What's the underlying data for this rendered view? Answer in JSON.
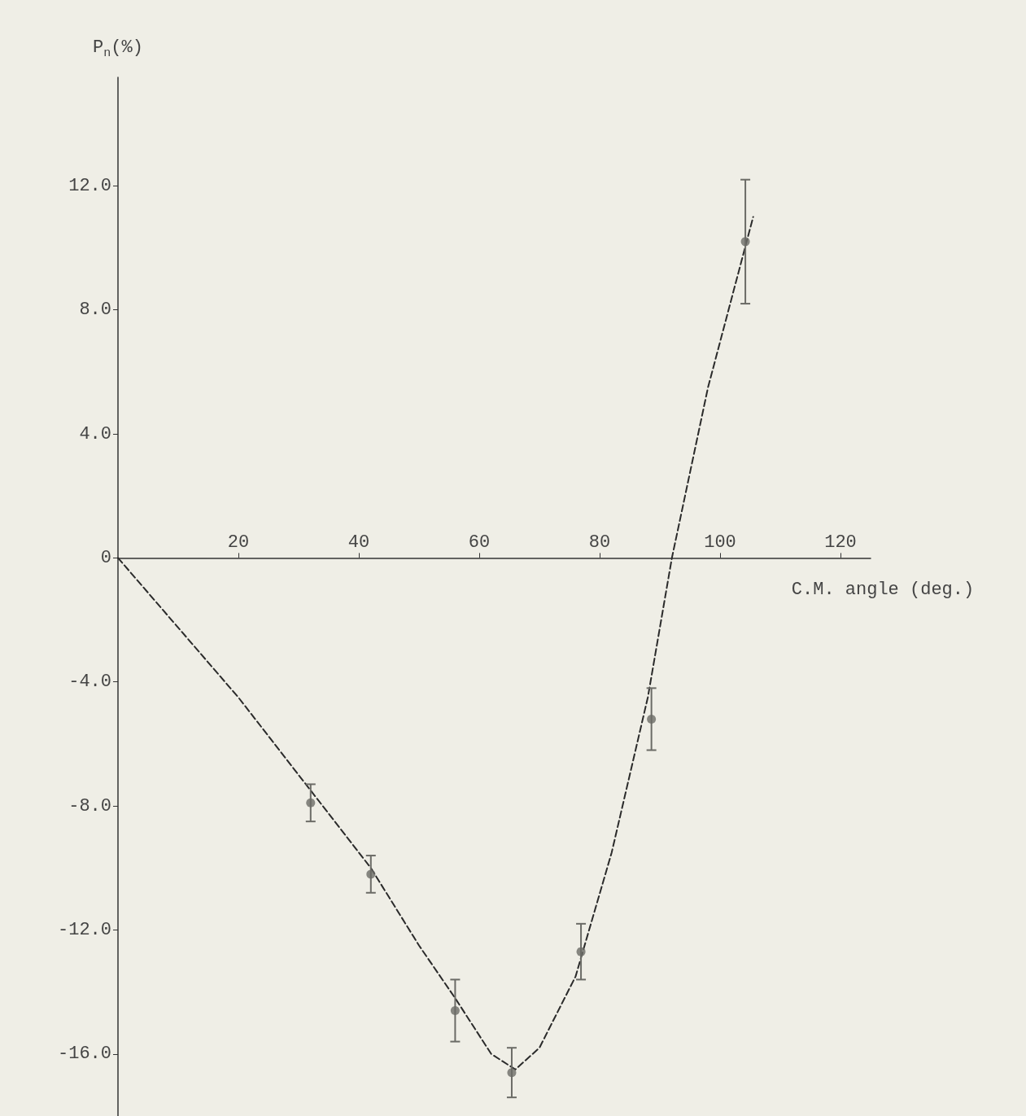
{
  "chart_data": {
    "type": "scatter",
    "xlabel": "C.M. angle (deg.)",
    "ylabel": "P$_{n}$(%)",
    "xlim": [
      0,
      125
    ],
    "xticks": [
      20,
      40,
      60,
      80,
      100,
      120
    ],
    "ylim": [
      -18,
      15.5
    ],
    "yticks": [
      {
        "value": -16,
        "label": "-16.0"
      },
      {
        "value": -12,
        "label": "-12.0"
      },
      {
        "value": -8,
        "label": "-8.0"
      },
      {
        "value": -4,
        "label": "-4.0"
      },
      0,
      {
        "value": 4,
        "label": "4.0"
      },
      {
        "value": 8,
        "label": "8.0"
      },
      {
        "value": 12,
        "label": "12.0"
      }
    ],
    "series": [
      {
        "color": "#6b6b66",
        "marker": "circle",
        "x": [
          32,
          42,
          56,
          65.4,
          76.9,
          88.6,
          104.2
        ],
        "values": [
          -7.9,
          -10.2,
          -14.6,
          -16.6,
          -12.7,
          -5.2,
          10.2
        ],
        "errors": [
          0.6,
          0.6,
          1.0,
          0.8,
          0.9,
          1.0,
          2.0
        ]
      },
      {
        "type": "line",
        "color": "#2a2a2a",
        "marker": "none",
        "line_style": "dashed",
        "x": [
          0,
          20,
          32,
          42,
          50,
          56,
          62,
          66,
          70,
          76,
          82,
          88,
          92,
          98,
          105.5
        ],
        "values": [
          0,
          -4.5,
          -7.5,
          -10.0,
          -12.5,
          -14.2,
          -16.0,
          -16.5,
          -15.8,
          -13.5,
          -9.5,
          -4.5,
          0,
          5.5,
          11
        ]
      }
    ]
  }
}
